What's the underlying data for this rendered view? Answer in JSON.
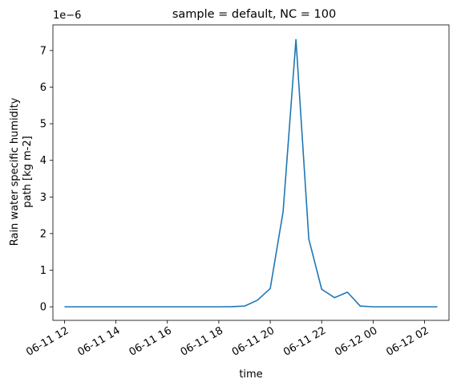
{
  "chart_data": {
    "type": "line",
    "title": "sample = default, NC = 100",
    "xlabel": "time",
    "ylabel_lines": [
      "Rain water specific humidity",
      "path [kg m-2]"
    ],
    "y_offset_label": "1e−6",
    "grid": false,
    "legend": "none",
    "xlim": [
      "2021-06-11T11:33",
      "2021-06-12T02:57"
    ],
    "ylim": [
      -0.37,
      7.7
    ],
    "x_ticks": [
      "06-11 12",
      "06-11 14",
      "06-11 16",
      "06-11 18",
      "06-11 20",
      "06-11 22",
      "06-12 00",
      "06-12 02"
    ],
    "y_ticks": [
      "0",
      "1",
      "2",
      "3",
      "4",
      "5",
      "6",
      "7"
    ],
    "series": [
      {
        "color": "#1f77b4",
        "x": [
          "2021-06-11T12:00",
          "2021-06-11T12:30",
          "2021-06-11T13:00",
          "2021-06-11T13:30",
          "2021-06-11T14:00",
          "2021-06-11T14:30",
          "2021-06-11T15:00",
          "2021-06-11T15:30",
          "2021-06-11T16:00",
          "2021-06-11T16:30",
          "2021-06-11T17:00",
          "2021-06-11T17:30",
          "2021-06-11T18:00",
          "2021-06-11T18:30",
          "2021-06-11T19:00",
          "2021-06-11T19:30",
          "2021-06-11T20:00",
          "2021-06-11T20:30",
          "2021-06-11T21:00",
          "2021-06-11T21:30",
          "2021-06-11T22:00",
          "2021-06-11T22:30",
          "2021-06-11T23:00",
          "2021-06-11T23:30",
          "2021-06-12T00:00",
          "2021-06-12T00:30",
          "2021-06-12T01:00",
          "2021-06-12T01:30",
          "2021-06-12T02:00",
          "2021-06-12T02:30"
        ],
        "values": [
          0,
          0,
          0,
          0,
          0,
          0,
          0,
          0,
          0,
          0,
          0,
          0,
          0,
          0.005,
          0.02,
          0.18,
          0.5,
          2.6,
          7.3,
          1.85,
          0.48,
          0.25,
          0.4,
          0.02,
          0,
          0,
          0,
          0,
          0,
          0
        ]
      }
    ]
  }
}
